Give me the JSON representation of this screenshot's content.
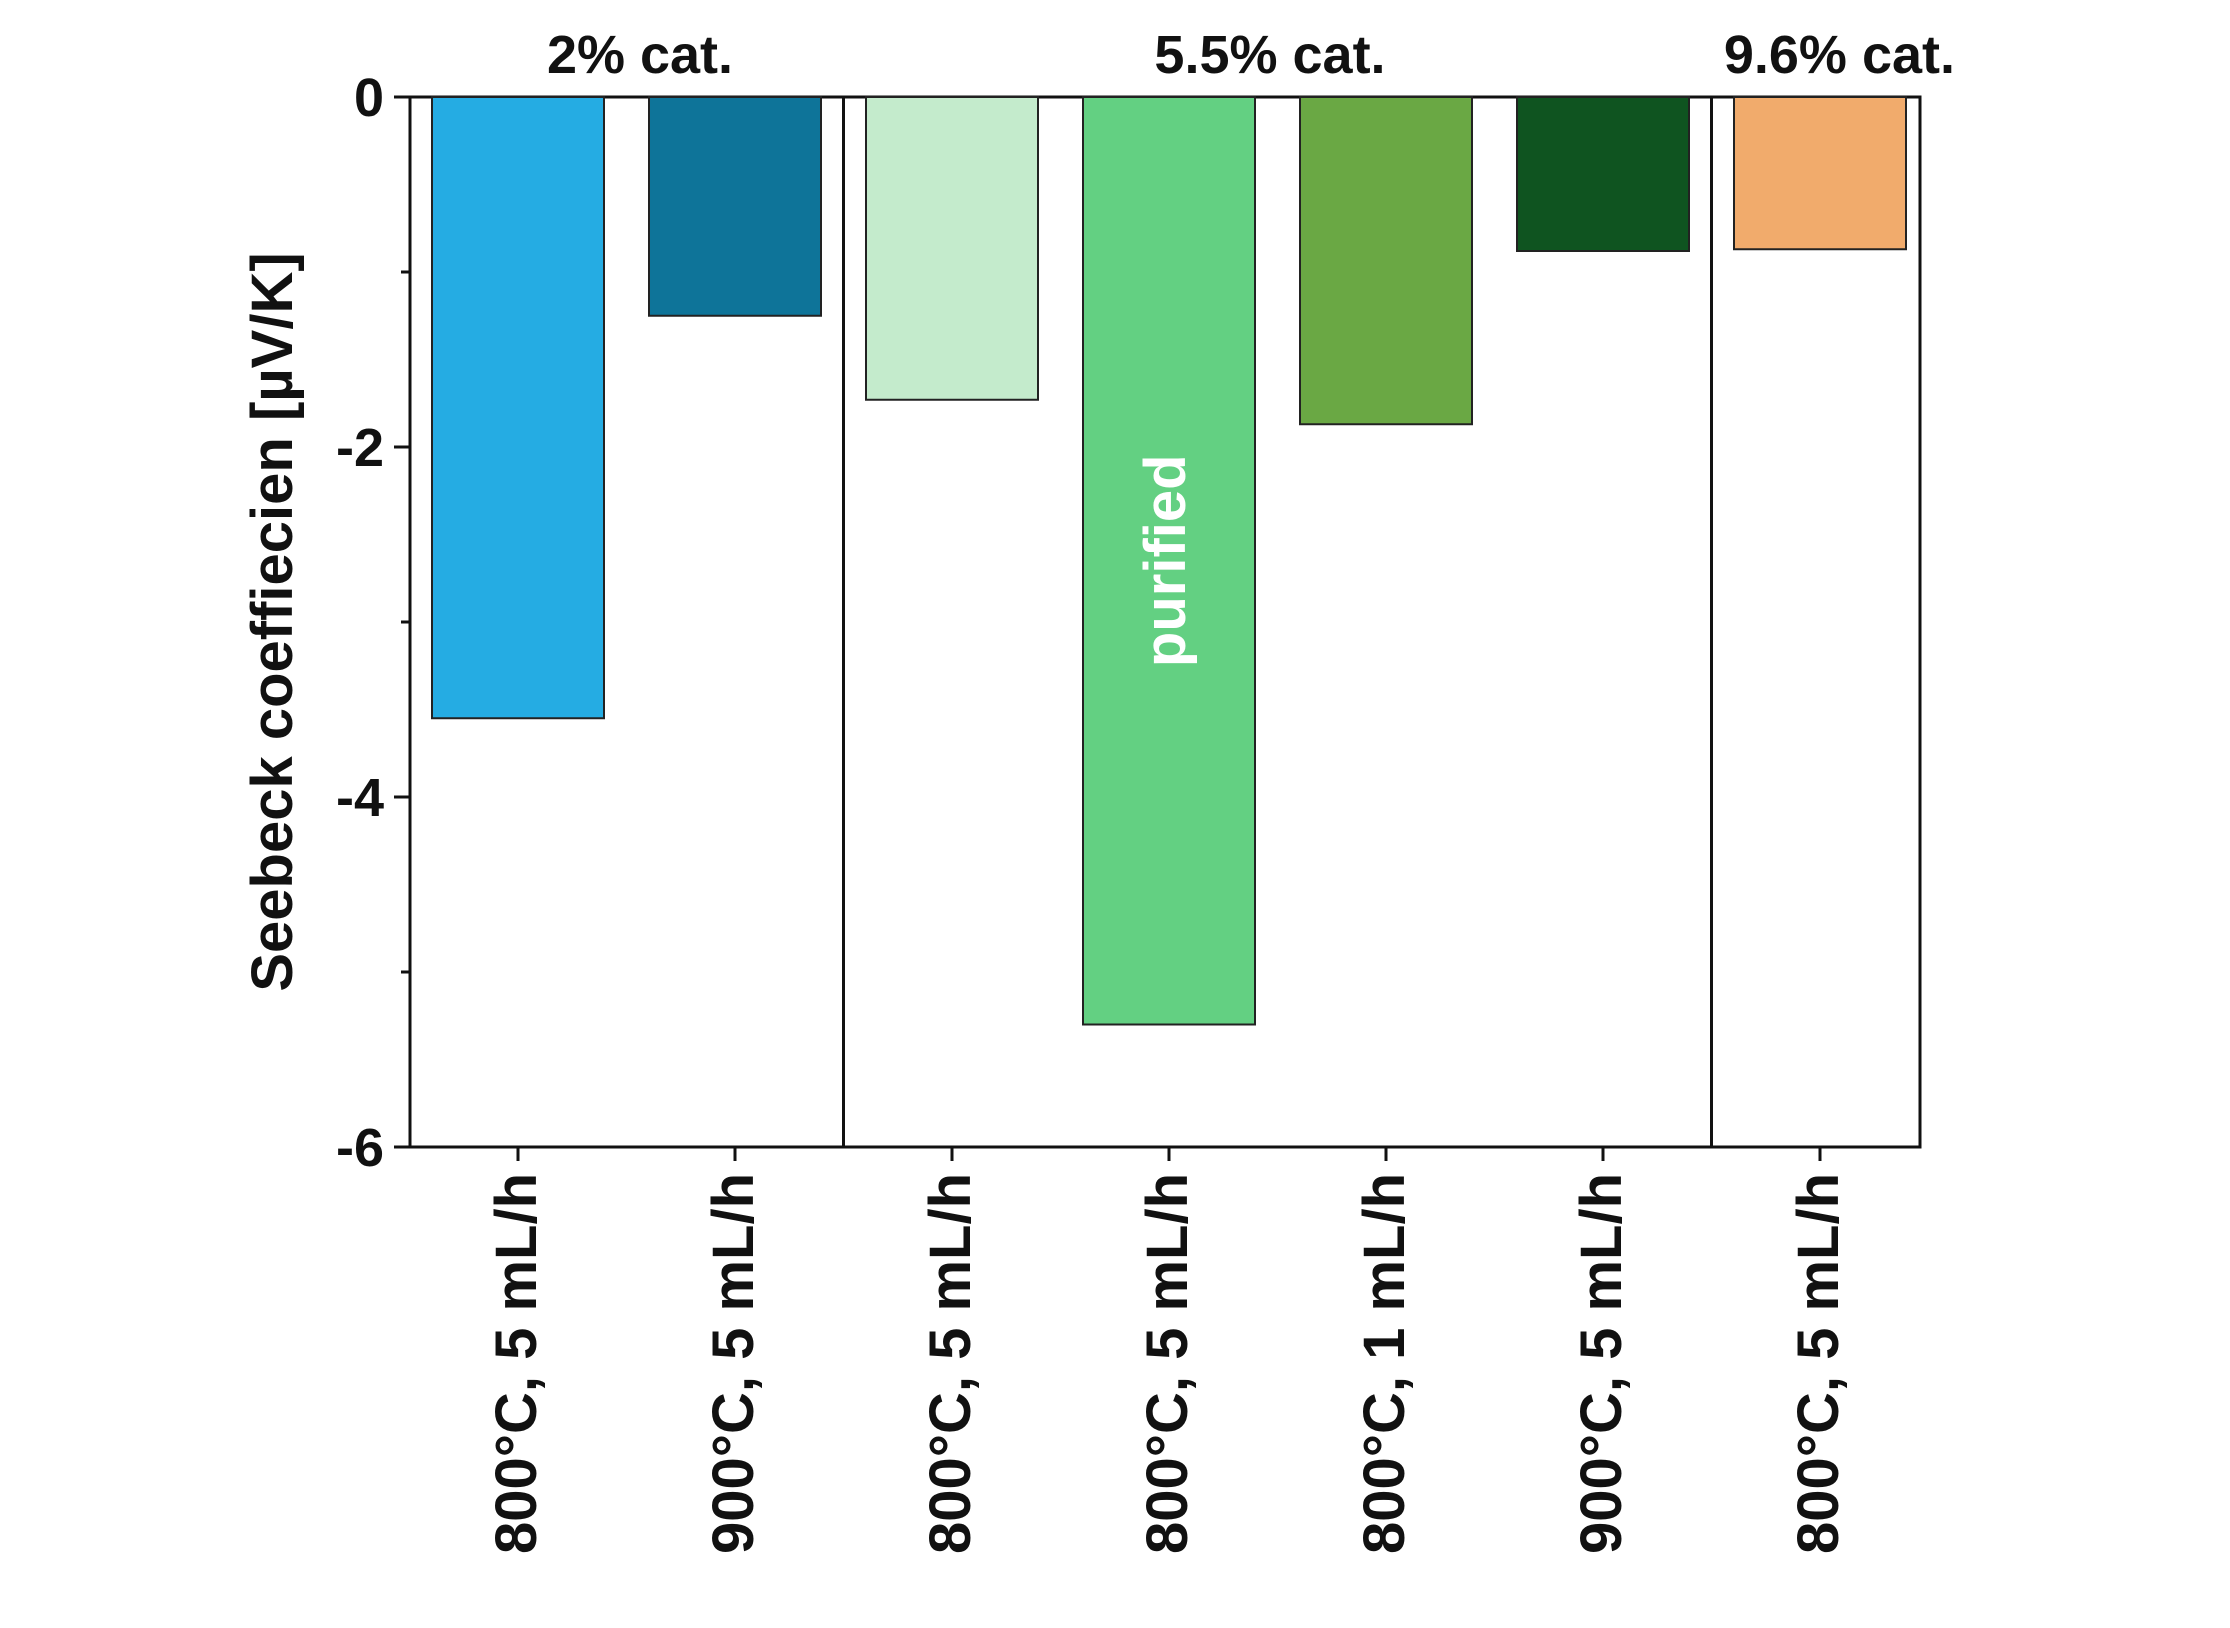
{
  "chart_data": {
    "type": "bar",
    "title": "",
    "ylabel": "Seebeck coeffiecien [µV/K]",
    "xlabel": "",
    "ylim": [
      -6,
      0
    ],
    "yticks": [
      {
        "value": 0,
        "label": "0"
      },
      {
        "value": -2,
        "label": "-2"
      },
      {
        "value": -4,
        "label": "-4"
      },
      {
        "value": -6,
        "label": "-6"
      }
    ],
    "minor_ticks": [
      -1,
      -3,
      -5
    ],
    "categories": [
      "800°C, 5 mL/h",
      "900°C, 5 mL/h",
      "800°C, 5 mL/h",
      "800°C, 5 mL/h",
      "800°C, 1 mL/h",
      "900°C, 5 mL/h",
      "800°C, 5 mL/h"
    ],
    "values": [
      -3.55,
      -1.25,
      -1.73,
      -5.3,
      -1.87,
      -0.88,
      -0.87
    ],
    "colors": [
      "#25ace3",
      "#0e7499",
      "#c4ebcc",
      "#63d082",
      "#6aa844",
      "#0f5420",
      "#f1ab6c"
    ],
    "bar_annotations": [
      {
        "index": 3,
        "text": "purified"
      }
    ],
    "groups": [
      {
        "label": "2% cat.",
        "start": 0,
        "end": 1
      },
      {
        "label": "5.5% cat.",
        "start": 2,
        "end": 5
      },
      {
        "label": "9.6% cat.",
        "start": 6,
        "end": 6
      }
    ]
  }
}
